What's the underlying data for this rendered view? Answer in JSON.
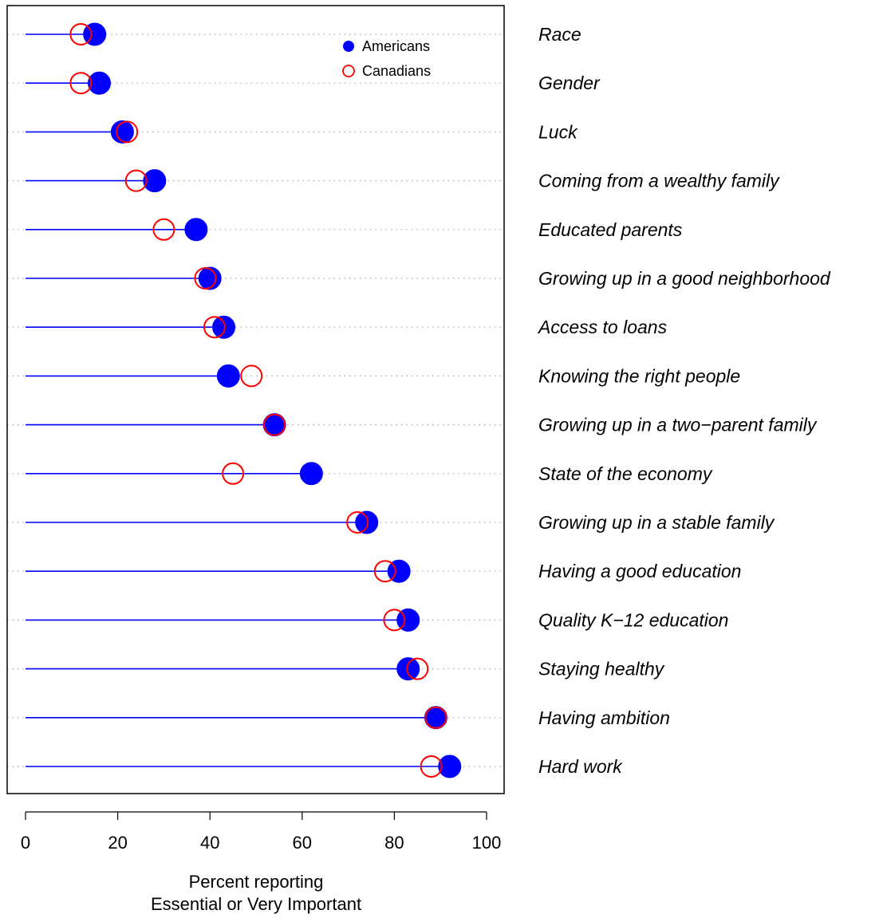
{
  "chart_data": {
    "type": "scatter",
    "subtype": "dot-plot with lollipop stems",
    "categories": [
      "Race",
      "Gender",
      "Luck",
      "Coming from a wealthy family",
      "Educated parents",
      "Growing up in a good neighborhood",
      "Access to loans",
      "Knowing the right people",
      "Growing up in a two−parent family",
      "State of the economy",
      "Growing up in a stable family",
      "Having a good education",
      "Quality K−12 education",
      "Staying healthy",
      "Having ambition",
      "Hard work"
    ],
    "series": [
      {
        "name": "Americans",
        "marker": "filled-circle",
        "color": "#0000ff",
        "values": [
          15,
          16,
          21,
          28,
          37,
          40,
          43,
          44,
          54,
          62,
          74,
          81,
          83,
          83,
          89,
          92
        ]
      },
      {
        "name": "Canadians",
        "marker": "open-circle",
        "color": "#ff0000",
        "values": [
          12,
          12,
          22,
          24,
          30,
          39,
          41,
          49,
          54,
          45,
          72,
          78,
          80,
          85,
          89,
          88
        ]
      }
    ],
    "stem_series": "Americans",
    "stem_color": "#0000ff",
    "xlabel_line1": "Percent reporting",
    "xlabel_line2": "Essential or Very Important",
    "xlim": [
      -4,
      104
    ],
    "xticks": [
      "0",
      "20",
      "40",
      "60",
      "80",
      "100"
    ],
    "grid": "horizontal dotted gray",
    "legend_position": "top-right"
  }
}
